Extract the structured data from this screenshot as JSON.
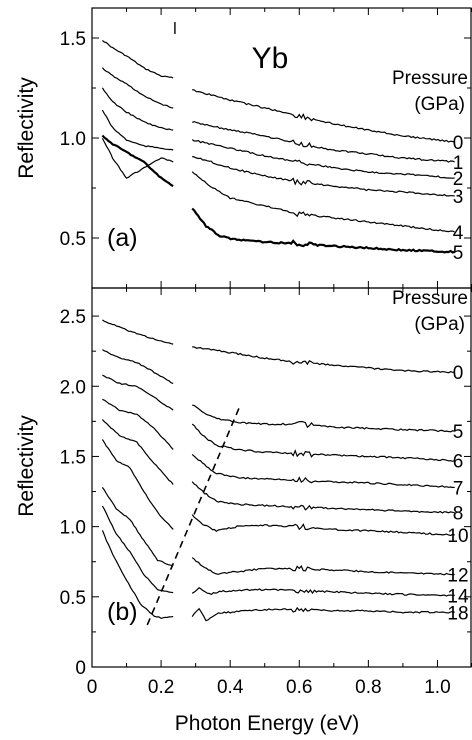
{
  "title": "Yb",
  "xlabel": "Photon Energy (eV)",
  "ylabel": "Reflectivity",
  "legend_title": [
    "Pressure",
    "(GPa)"
  ],
  "chart_data": [
    {
      "type": "line",
      "panel_label": "(a)",
      "xlim": [
        0,
        1.1
      ],
      "ylim": [
        0.25,
        1.65
      ],
      "xticks": [
        0,
        0.2,
        0.4,
        0.6,
        0.8,
        1.0
      ],
      "xtick_labels": [
        "",
        "",
        "",
        "",
        "",
        ""
      ],
      "yticks": [
        0.5,
        1.0,
        1.5
      ],
      "ytick_labels": [
        "0.5",
        "1.0",
        "1.5"
      ],
      "series": [
        {
          "name": "0",
          "x": [
            0.03,
            0.06,
            0.1,
            0.15,
            0.2,
            0.235
          ],
          "y": [
            1.49,
            1.45,
            1.41,
            1.35,
            1.31,
            1.3
          ],
          "x2": [
            0.29,
            0.4,
            0.5,
            0.6,
            0.7,
            0.8,
            0.9,
            1.05
          ],
          "y2": [
            1.24,
            1.19,
            1.15,
            1.11,
            1.07,
            1.04,
            1.01,
            0.98
          ]
        },
        {
          "name": "1",
          "x": [
            0.03,
            0.06,
            0.1,
            0.15,
            0.2,
            0.235
          ],
          "y": [
            1.35,
            1.31,
            1.27,
            1.21,
            1.17,
            1.15
          ],
          "x2": [
            0.29,
            0.4,
            0.5,
            0.6,
            0.7,
            0.8,
            0.9,
            1.05
          ],
          "y2": [
            1.08,
            1.04,
            1.01,
            0.97,
            0.94,
            0.92,
            0.9,
            0.88
          ]
        },
        {
          "name": "2",
          "x": [
            0.03,
            0.06,
            0.1,
            0.15,
            0.2,
            0.235
          ],
          "y": [
            1.25,
            1.18,
            1.13,
            1.08,
            1.05,
            1.04
          ],
          "x2": [
            0.29,
            0.4,
            0.5,
            0.6,
            0.7,
            0.8,
            0.9,
            1.05
          ],
          "y2": [
            0.99,
            0.95,
            0.91,
            0.88,
            0.85,
            0.83,
            0.82,
            0.8
          ]
        },
        {
          "name": "3",
          "x": [
            0.03,
            0.06,
            0.1,
            0.15,
            0.2,
            0.235
          ],
          "y": [
            1.14,
            1.05,
            0.99,
            0.96,
            0.95,
            0.94
          ],
          "x2": [
            0.29,
            0.4,
            0.5,
            0.6,
            0.7,
            0.8,
            0.9,
            1.05
          ],
          "y2": [
            0.91,
            0.85,
            0.81,
            0.78,
            0.76,
            0.74,
            0.73,
            0.71
          ]
        },
        {
          "name": "4",
          "x": [
            0.03,
            0.06,
            0.1,
            0.15,
            0.2,
            0.235
          ],
          "y": [
            1.0,
            0.9,
            0.8,
            0.85,
            0.9,
            0.88
          ],
          "x2": [
            0.29,
            0.35,
            0.4,
            0.5,
            0.6,
            0.7,
            0.8,
            0.9,
            1.05
          ],
          "y2": [
            0.83,
            0.75,
            0.7,
            0.66,
            0.62,
            0.6,
            0.58,
            0.56,
            0.53
          ]
        },
        {
          "name": "5",
          "x": [
            0.03,
            0.06,
            0.1,
            0.15,
            0.2,
            0.235
          ],
          "y": [
            1.01,
            0.97,
            0.93,
            0.88,
            0.8,
            0.76
          ],
          "x2": [
            0.29,
            0.33,
            0.37,
            0.42,
            0.5,
            0.6,
            0.7,
            0.8,
            0.9,
            1.05
          ],
          "y2": [
            0.65,
            0.56,
            0.51,
            0.49,
            0.48,
            0.47,
            0.46,
            0.45,
            0.44,
            0.43
          ]
        }
      ]
    },
    {
      "type": "line",
      "panel_label": "(b)",
      "xlim": [
        0,
        1.1
      ],
      "ylim": [
        0,
        2.7
      ],
      "xticks": [
        0,
        0.2,
        0.4,
        0.6,
        0.8,
        1.0
      ],
      "xtick_labels": [
        "0",
        "0.2",
        "0.4",
        "0.6",
        "0.8",
        "1.0"
      ],
      "yticks": [
        0,
        0.5,
        1.0,
        1.5,
        2.0,
        2.5
      ],
      "ytick_labels": [
        "0",
        "0.5",
        "1.0",
        "1.5",
        "2.0",
        "2.5"
      ],
      "series": [
        {
          "name": "0",
          "x": [
            0.03,
            0.1,
            0.2,
            0.235
          ],
          "y": [
            2.47,
            2.4,
            2.32,
            2.3
          ],
          "x2": [
            0.29,
            0.4,
            0.5,
            0.6,
            0.7,
            0.8,
            0.9,
            1.05
          ],
          "y2": [
            2.28,
            2.24,
            2.2,
            2.17,
            2.15,
            2.13,
            2.11,
            2.1
          ]
        },
        {
          "name": "5",
          "x": [
            0.03,
            0.08,
            0.13,
            0.18,
            0.235
          ],
          "y": [
            2.26,
            2.2,
            2.17,
            2.1,
            2.02
          ],
          "x2": [
            0.29,
            0.33,
            0.38,
            0.43,
            0.5,
            0.6,
            0.7,
            0.8,
            0.9,
            1.05
          ],
          "y2": [
            1.87,
            1.8,
            1.76,
            1.74,
            1.73,
            1.73,
            1.71,
            1.7,
            1.69,
            1.68
          ]
        },
        {
          "name": "6",
          "x": [
            0.03,
            0.08,
            0.13,
            0.18,
            0.235
          ],
          "y": [
            2.08,
            2.02,
            2.0,
            1.92,
            1.83
          ],
          "x2": [
            0.29,
            0.32,
            0.36,
            0.42,
            0.5,
            0.6,
            0.7,
            0.8,
            0.9,
            1.05
          ],
          "y2": [
            1.73,
            1.65,
            1.58,
            1.55,
            1.53,
            1.52,
            1.51,
            1.5,
            1.49,
            1.47
          ]
        },
        {
          "name": "7",
          "x": [
            0.03,
            0.08,
            0.13,
            0.18,
            0.235
          ],
          "y": [
            1.91,
            1.83,
            1.8,
            1.7,
            1.55
          ],
          "x2": [
            0.29,
            0.32,
            0.36,
            0.42,
            0.5,
            0.6,
            0.7,
            0.8,
            0.9,
            1.05
          ],
          "y2": [
            1.52,
            1.45,
            1.38,
            1.35,
            1.34,
            1.33,
            1.32,
            1.31,
            1.3,
            1.28
          ]
        },
        {
          "name": "8",
          "x": [
            0.03,
            0.08,
            0.13,
            0.18,
            0.235
          ],
          "y": [
            1.76,
            1.65,
            1.6,
            1.45,
            1.3
          ],
          "x2": [
            0.29,
            0.32,
            0.36,
            0.42,
            0.5,
            0.6,
            0.7,
            0.8,
            0.9,
            1.05
          ],
          "y2": [
            1.32,
            1.25,
            1.18,
            1.16,
            1.15,
            1.14,
            1.13,
            1.12,
            1.11,
            1.1
          ]
        },
        {
          "name": "10",
          "x": [
            0.03,
            0.07,
            0.11,
            0.15,
            0.19,
            0.235
          ],
          "y": [
            1.62,
            1.47,
            1.42,
            1.25,
            1.1,
            0.98
          ],
          "x2": [
            0.29,
            0.32,
            0.36,
            0.42,
            0.5,
            0.6,
            0.7,
            0.8,
            0.9,
            1.05
          ],
          "y2": [
            1.08,
            1.02,
            0.97,
            1.0,
            1.01,
            1.0,
            0.98,
            0.97,
            0.96,
            0.94
          ]
        },
        {
          "name": "12",
          "x": [
            0.03,
            0.07,
            0.11,
            0.15,
            0.19,
            0.235
          ],
          "y": [
            1.28,
            1.13,
            1.05,
            0.9,
            0.76,
            0.72
          ],
          "x2": [
            0.29,
            0.32,
            0.36,
            0.42,
            0.5,
            0.6,
            0.7,
            0.8,
            0.9,
            1.05
          ],
          "y2": [
            0.78,
            0.72,
            0.66,
            0.68,
            0.7,
            0.7,
            0.69,
            0.68,
            0.67,
            0.66
          ]
        },
        {
          "name": "14",
          "x": [
            0.03,
            0.07,
            0.11,
            0.15,
            0.19,
            0.235
          ],
          "y": [
            1.15,
            0.95,
            0.82,
            0.66,
            0.55,
            0.53
          ],
          "x2": [
            0.29,
            0.31,
            0.34,
            0.38,
            0.45,
            0.55,
            0.65,
            0.75,
            0.85,
            1.05
          ],
          "y2": [
            0.52,
            0.56,
            0.52,
            0.54,
            0.55,
            0.55,
            0.54,
            0.53,
            0.52,
            0.51
          ]
        },
        {
          "name": "18",
          "x": [
            0.03,
            0.06,
            0.1,
            0.14,
            0.18,
            0.2,
            0.235
          ],
          "y": [
            0.97,
            0.8,
            0.62,
            0.45,
            0.36,
            0.35,
            0.36
          ],
          "x2": [
            0.29,
            0.31,
            0.33,
            0.36,
            0.4,
            0.45,
            0.5,
            0.6,
            0.7,
            0.8,
            0.9,
            1.05
          ],
          "y2": [
            0.36,
            0.42,
            0.33,
            0.38,
            0.39,
            0.4,
            0.41,
            0.41,
            0.4,
            0.4,
            0.39,
            0.39
          ]
        }
      ],
      "dashed_line": {
        "x": [
          0.16,
          0.43
        ],
        "y": [
          0.3,
          1.87
        ]
      }
    }
  ]
}
